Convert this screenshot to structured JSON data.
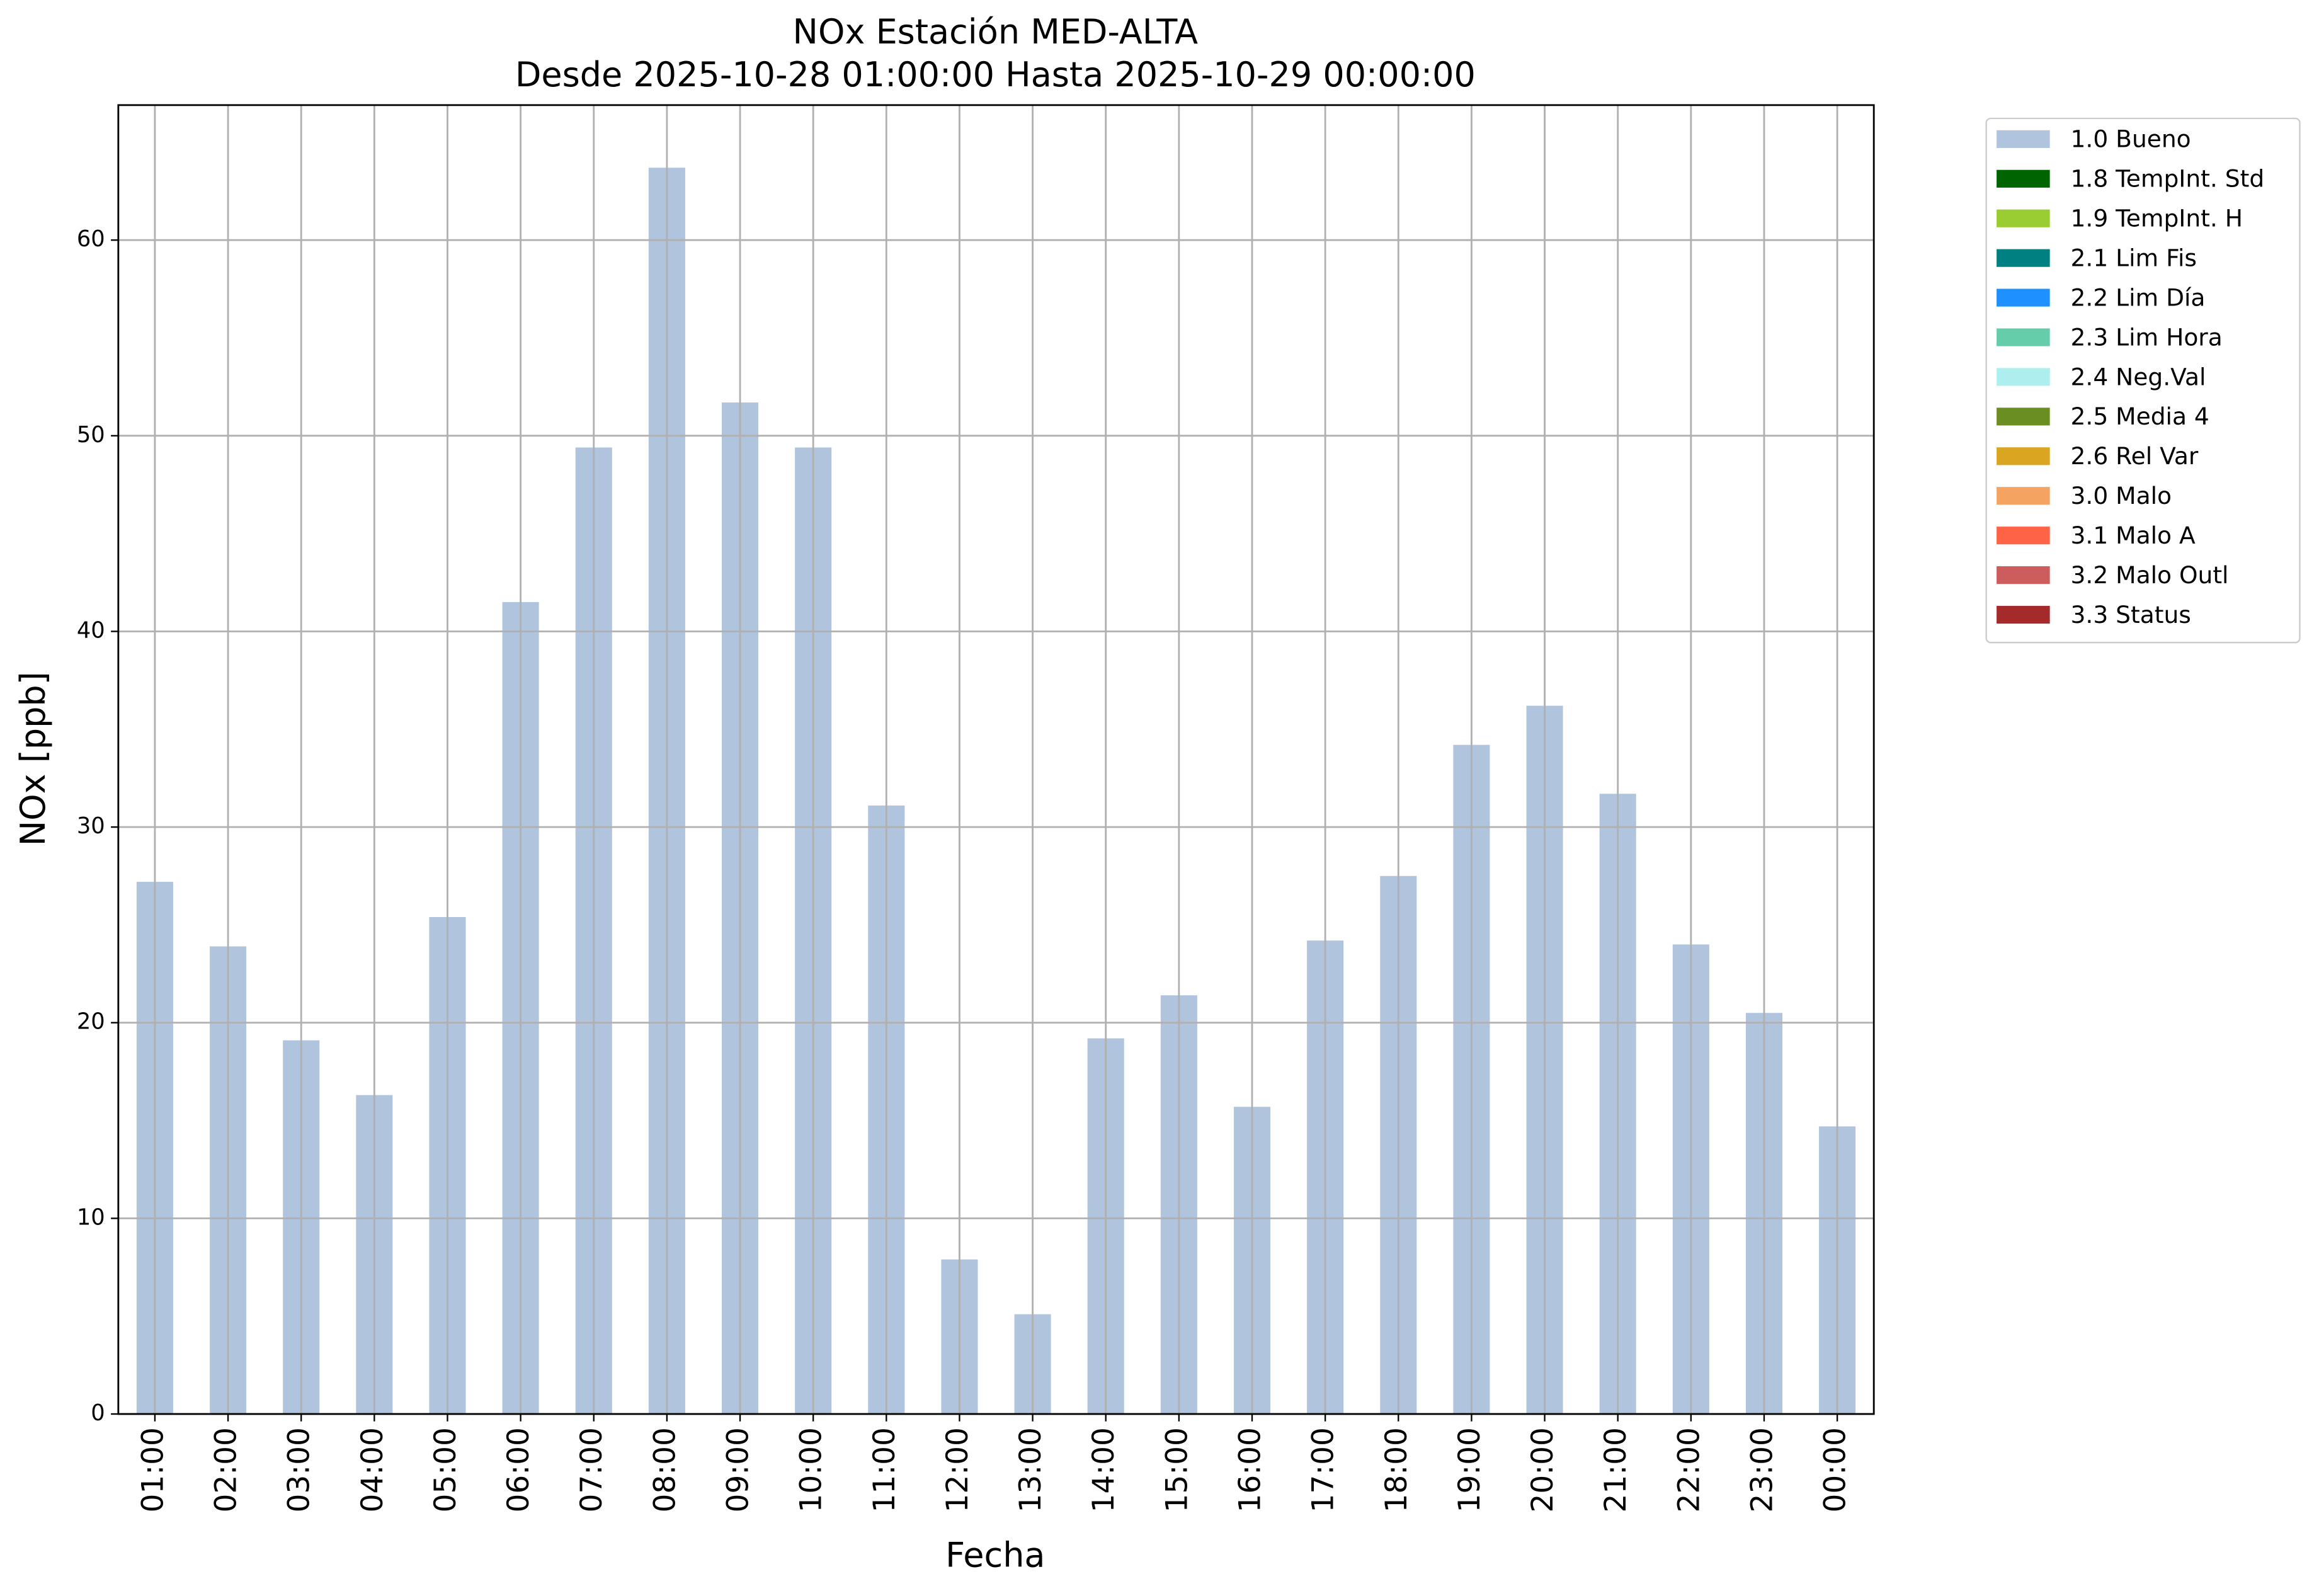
{
  "chart_data": {
    "type": "bar",
    "stacked": true,
    "title": "NOx Estación MED-ALTA",
    "subtitle": "Desde 2025-10-28 01:00:00 Hasta 2025-10-29 00:00:00",
    "x_label": "Fecha",
    "y_label": "NOx [ppb]",
    "categories": [
      "01:00",
      "02:00",
      "03:00",
      "04:00",
      "05:00",
      "06:00",
      "07:00",
      "08:00",
      "09:00",
      "10:00",
      "11:00",
      "12:00",
      "13:00",
      "14:00",
      "15:00",
      "16:00",
      "17:00",
      "18:00",
      "19:00",
      "20:00",
      "21:00",
      "22:00",
      "23:00",
      "00:00"
    ],
    "series": [
      {
        "name": "1.0 Bueno",
        "color": "#b0c4de",
        "values": [
          27.2,
          23.9,
          19.1,
          16.3,
          25.4,
          41.5,
          49.4,
          63.7,
          51.7,
          49.4,
          31.1,
          7.9,
          5.1,
          19.2,
          21.4,
          15.7,
          24.2,
          27.5,
          34.2,
          36.2,
          31.7,
          24.0,
          20.5,
          14.7
        ]
      },
      {
        "name": "1.8 TempInt. Std",
        "color": "#006400",
        "values": [
          null,
          null,
          null,
          null,
          null,
          null,
          null,
          null,
          null,
          null,
          null,
          null,
          null,
          null,
          null,
          null,
          null,
          null,
          null,
          null,
          null,
          null,
          null,
          null
        ]
      },
      {
        "name": "1.9 TempInt. H",
        "color": "#9acd32",
        "values": [
          null,
          null,
          null,
          null,
          null,
          null,
          null,
          null,
          null,
          null,
          null,
          null,
          null,
          null,
          null,
          null,
          null,
          null,
          null,
          null,
          null,
          null,
          null,
          null
        ]
      },
      {
        "name": "2.1 Lim Fis",
        "color": "#008080",
        "values": [
          null,
          null,
          null,
          null,
          null,
          null,
          null,
          null,
          null,
          null,
          null,
          null,
          null,
          null,
          null,
          null,
          null,
          null,
          null,
          null,
          null,
          null,
          null,
          null
        ]
      },
      {
        "name": "2.2 Lim Día",
        "color": "#1e90ff",
        "values": [
          null,
          null,
          null,
          null,
          null,
          null,
          null,
          null,
          null,
          null,
          null,
          null,
          null,
          null,
          null,
          null,
          null,
          null,
          null,
          null,
          null,
          null,
          null,
          null
        ]
      },
      {
        "name": "2.3 Lim Hora",
        "color": "#66cdaa",
        "values": [
          null,
          null,
          null,
          null,
          null,
          null,
          null,
          null,
          null,
          null,
          null,
          null,
          null,
          null,
          null,
          null,
          null,
          null,
          null,
          null,
          null,
          null,
          null,
          null
        ]
      },
      {
        "name": "2.4 Neg.Val",
        "color": "#afeeee",
        "values": [
          null,
          null,
          null,
          null,
          null,
          null,
          null,
          null,
          null,
          null,
          null,
          null,
          null,
          null,
          null,
          null,
          null,
          null,
          null,
          null,
          null,
          null,
          null,
          null
        ]
      },
      {
        "name": "2.5 Media 4",
        "color": "#6b8e23",
        "values": [
          null,
          null,
          null,
          null,
          null,
          null,
          null,
          null,
          null,
          null,
          null,
          null,
          null,
          null,
          null,
          null,
          null,
          null,
          null,
          null,
          null,
          null,
          null,
          null
        ]
      },
      {
        "name": "2.6 Rel Var",
        "color": "#daa520",
        "values": [
          null,
          null,
          null,
          null,
          null,
          null,
          null,
          null,
          null,
          null,
          null,
          null,
          null,
          null,
          null,
          null,
          null,
          null,
          null,
          null,
          null,
          null,
          null,
          null
        ]
      },
      {
        "name": "3.0 Malo",
        "color": "#f4a460",
        "values": [
          null,
          null,
          null,
          null,
          null,
          null,
          null,
          null,
          null,
          null,
          null,
          null,
          null,
          null,
          null,
          null,
          null,
          null,
          null,
          null,
          null,
          null,
          null,
          null
        ]
      },
      {
        "name": "3.1 Malo A",
        "color": "#ff6347",
        "values": [
          null,
          null,
          null,
          null,
          null,
          null,
          null,
          null,
          null,
          null,
          null,
          null,
          null,
          null,
          null,
          null,
          null,
          null,
          null,
          null,
          null,
          null,
          null,
          null
        ]
      },
      {
        "name": "3.2 Malo Outl",
        "color": "#cd5c5c",
        "values": [
          null,
          null,
          null,
          null,
          null,
          null,
          null,
          null,
          null,
          null,
          null,
          null,
          null,
          null,
          null,
          null,
          null,
          null,
          null,
          null,
          null,
          null,
          null,
          null
        ]
      },
      {
        "name": "3.3 Status",
        "color": "#a52a2a",
        "values": [
          null,
          null,
          null,
          null,
          null,
          null,
          null,
          null,
          null,
          null,
          null,
          null,
          null,
          null,
          null,
          null,
          null,
          null,
          null,
          null,
          null,
          null,
          null,
          null
        ]
      }
    ],
    "ylim": [
      0,
      66.9
    ],
    "yticks": [
      0,
      10,
      20,
      30,
      40,
      50,
      60
    ],
    "grid": true,
    "legend": "outside-upper-right"
  }
}
